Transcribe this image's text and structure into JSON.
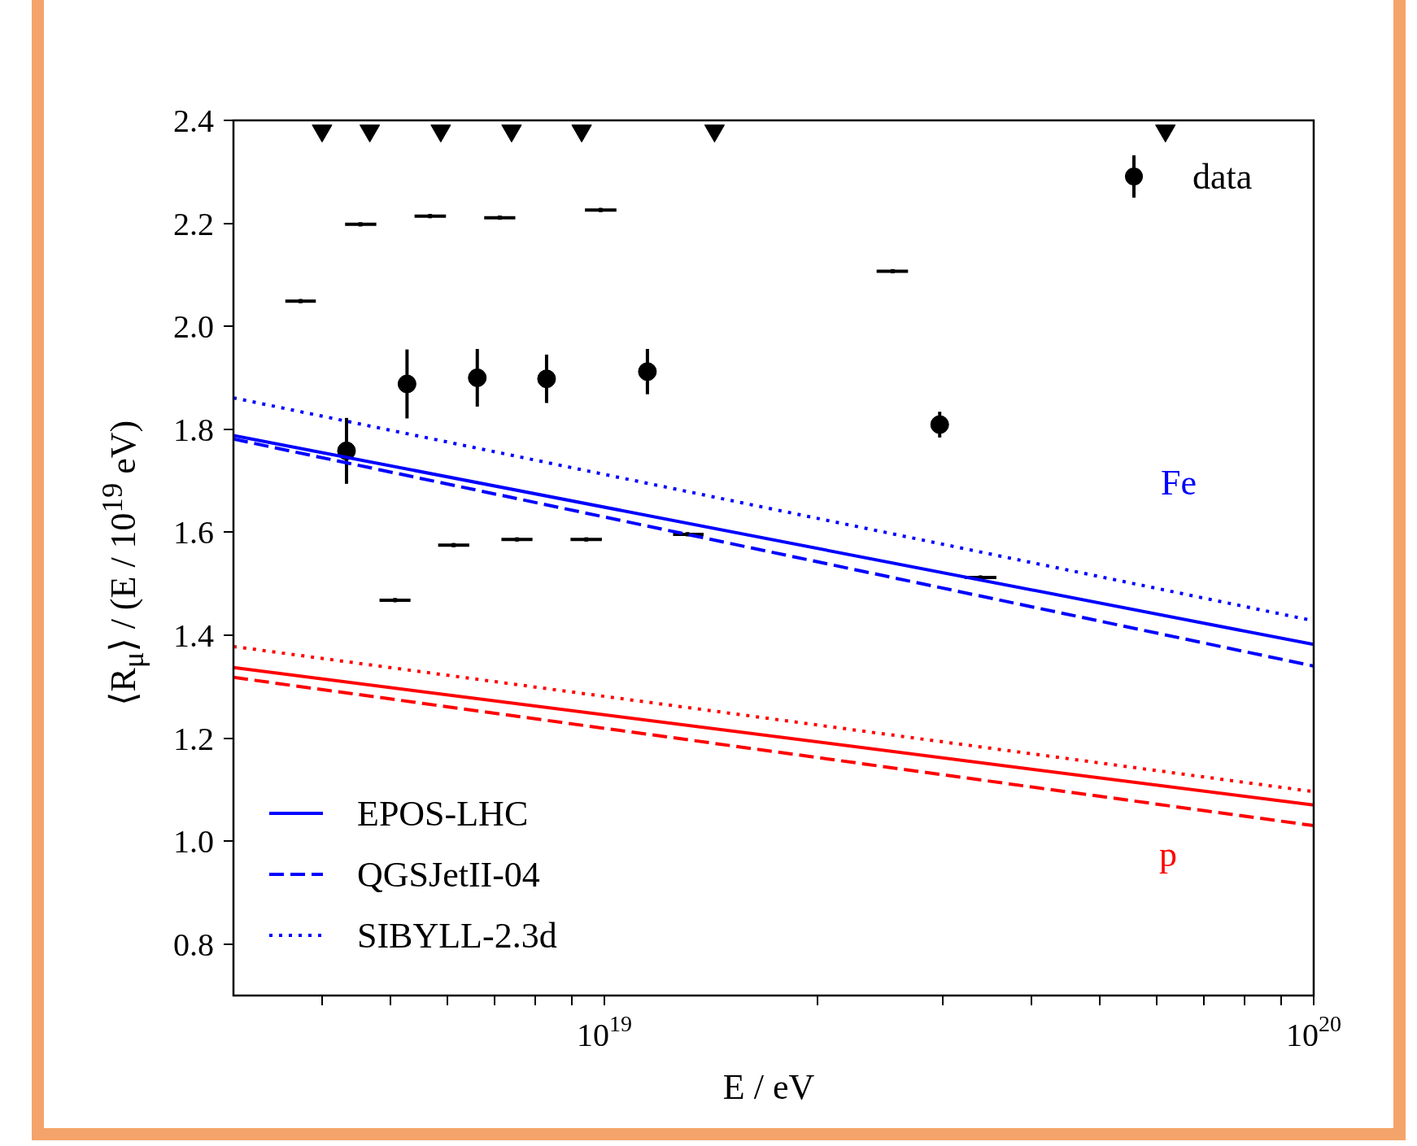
{
  "chart_data": {
    "type": "line",
    "xlabel": "E / eV",
    "ylabel": "⟨R$_{μ}$⟩ / (E / 10$^{19}$ eV)",
    "log": "x",
    "grid": false,
    "legend": "top right",
    "xlim": [
      3e+18,
      1e+20
    ],
    "xticks": [
      {
        "value": 4e+18,
        "label": null
      },
      {
        "value": 5e+18,
        "label": null
      },
      {
        "value": 6e+18,
        "label": null
      },
      {
        "value": 7e+18,
        "label": null
      },
      {
        "value": 8e+18,
        "label": null
      },
      {
        "value": 9e+18,
        "label": null
      },
      {
        "value": 1e+19,
        "label": "10$^{19}$"
      },
      {
        "value": 2e+19,
        "label": null
      },
      {
        "value": 3e+19,
        "label": null
      },
      {
        "value": 4e+19,
        "label": null
      },
      {
        "value": 5e+19,
        "label": null
      },
      {
        "value": 6e+19,
        "label": null
      },
      {
        "value": 7e+19,
        "label": null
      },
      {
        "value": 8e+19,
        "label": null
      },
      {
        "value": 9e+19,
        "label": null
      },
      {
        "value": 1e+20,
        "label": "10$^{20}$"
      }
    ],
    "ylim": [
      0.7,
      2.4
    ],
    "yticks": [
      0.8,
      {
        "value": 1,
        "label": "1.0"
      },
      1.2,
      1.4,
      1.6,
      1.8,
      {
        "value": 2,
        "label": "2.0"
      },
      2.2,
      2.4
    ],
    "annotations": [
      "Fe",
      "p"
    ],
    "series": [
      {
        "name": "EPOS-LHC",
        "color": "#0000ff",
        "line_style": "solid",
        "x": [
          3e+18,
          1e+20
        ],
        "values": [
          1.788,
          1.382
        ]
      },
      {
        "name": "QGSJetII-04",
        "color": "#0000ff",
        "line_style": "dashed",
        "x": [
          3e+18,
          1e+20
        ],
        "values": [
          1.781,
          1.34
        ]
      },
      {
        "name": "SIBYLL-2.3d",
        "color": "#0000ff",
        "line_style": "dotted",
        "x": [
          3e+18,
          1e+20
        ],
        "values": [
          1.861,
          1.428
        ]
      },
      {
        "color": "#ff0000",
        "line_style": "solid",
        "x": [
          3e+18,
          1e+20
        ],
        "values": [
          1.337,
          1.07
        ]
      },
      {
        "color": "#ff0000",
        "line_style": "dashed",
        "x": [
          3e+18,
          1e+20
        ],
        "values": [
          1.318,
          1.03
        ]
      },
      {
        "color": "#ff0000",
        "line_style": "dotted",
        "x": [
          3e+18,
          1e+20
        ],
        "values": [
          1.378,
          1.096
        ]
      },
      {
        "type": "scatter",
        "color": "#000000",
        "marker": "square",
        "x": [
          3.73e+18,
          4.53e+18,
          5.68e+18,
          7.12e+18,
          9.88e+18,
          2.55e+19
        ],
        "values": [
          2.049,
          2.198,
          2.214,
          2.211,
          2.226,
          2.107
        ],
        "xerrors": [
          [
            3.55e+18,
            3.92e+18
          ],
          [
            4.31e+18,
            4.77e+18
          ],
          [
            5.4e+18,
            5.98e+18
          ],
          [
            6.77e+18,
            7.49e+18
          ],
          [
            9.39e+18,
            1.04e+19
          ],
          [
            2.42e+19,
            2.68e+19
          ]
        ]
      },
      {
        "type": "scatter",
        "color": "#000000",
        "marker": "square",
        "x": [
          5.07e+18,
          6.13e+18,
          7.53e+18,
          9.43e+18,
          1.31e+19,
          3.39e+19
        ],
        "values": [
          1.468,
          1.575,
          1.586,
          1.586,
          1.596,
          1.512
        ],
        "xerrors": [
          [
            4.82e+18,
            5.33e+18
          ],
          [
            5.83e+18,
            6.45e+18
          ],
          [
            7.16e+18,
            7.92e+18
          ],
          [
            8.96e+18,
            9.92e+18
          ],
          [
            1.25e+19,
            1.38e+19
          ],
          [
            3.22e+19,
            3.57e+19
          ]
        ]
      },
      {
        "type": "scatter",
        "color": "#000000",
        "marker": "triangle",
        "x": [
          4e+18,
          4.67e+18,
          5.88e+18,
          7.4e+18,
          9.29e+18,
          1.43e+19,
          6.18e+19
        ],
        "values": [
          2.38,
          2.38,
          2.38,
          2.38,
          2.38,
          2.38,
          2.38
        ]
      },
      {
        "name": "data",
        "type": "scatter",
        "color": "#000000",
        "marker": "circle",
        "x": [
          4.33e+18,
          5.27e+18,
          6.62e+18,
          8.29e+18,
          1.15e+19,
          2.97e+19
        ],
        "values": [
          1.758,
          1.888,
          1.9,
          1.898,
          1.912,
          1.809
        ],
        "errors": [
          0.064,
          0.067,
          0.056,
          0.047,
          0.044,
          0.025
        ]
      }
    ]
  }
}
